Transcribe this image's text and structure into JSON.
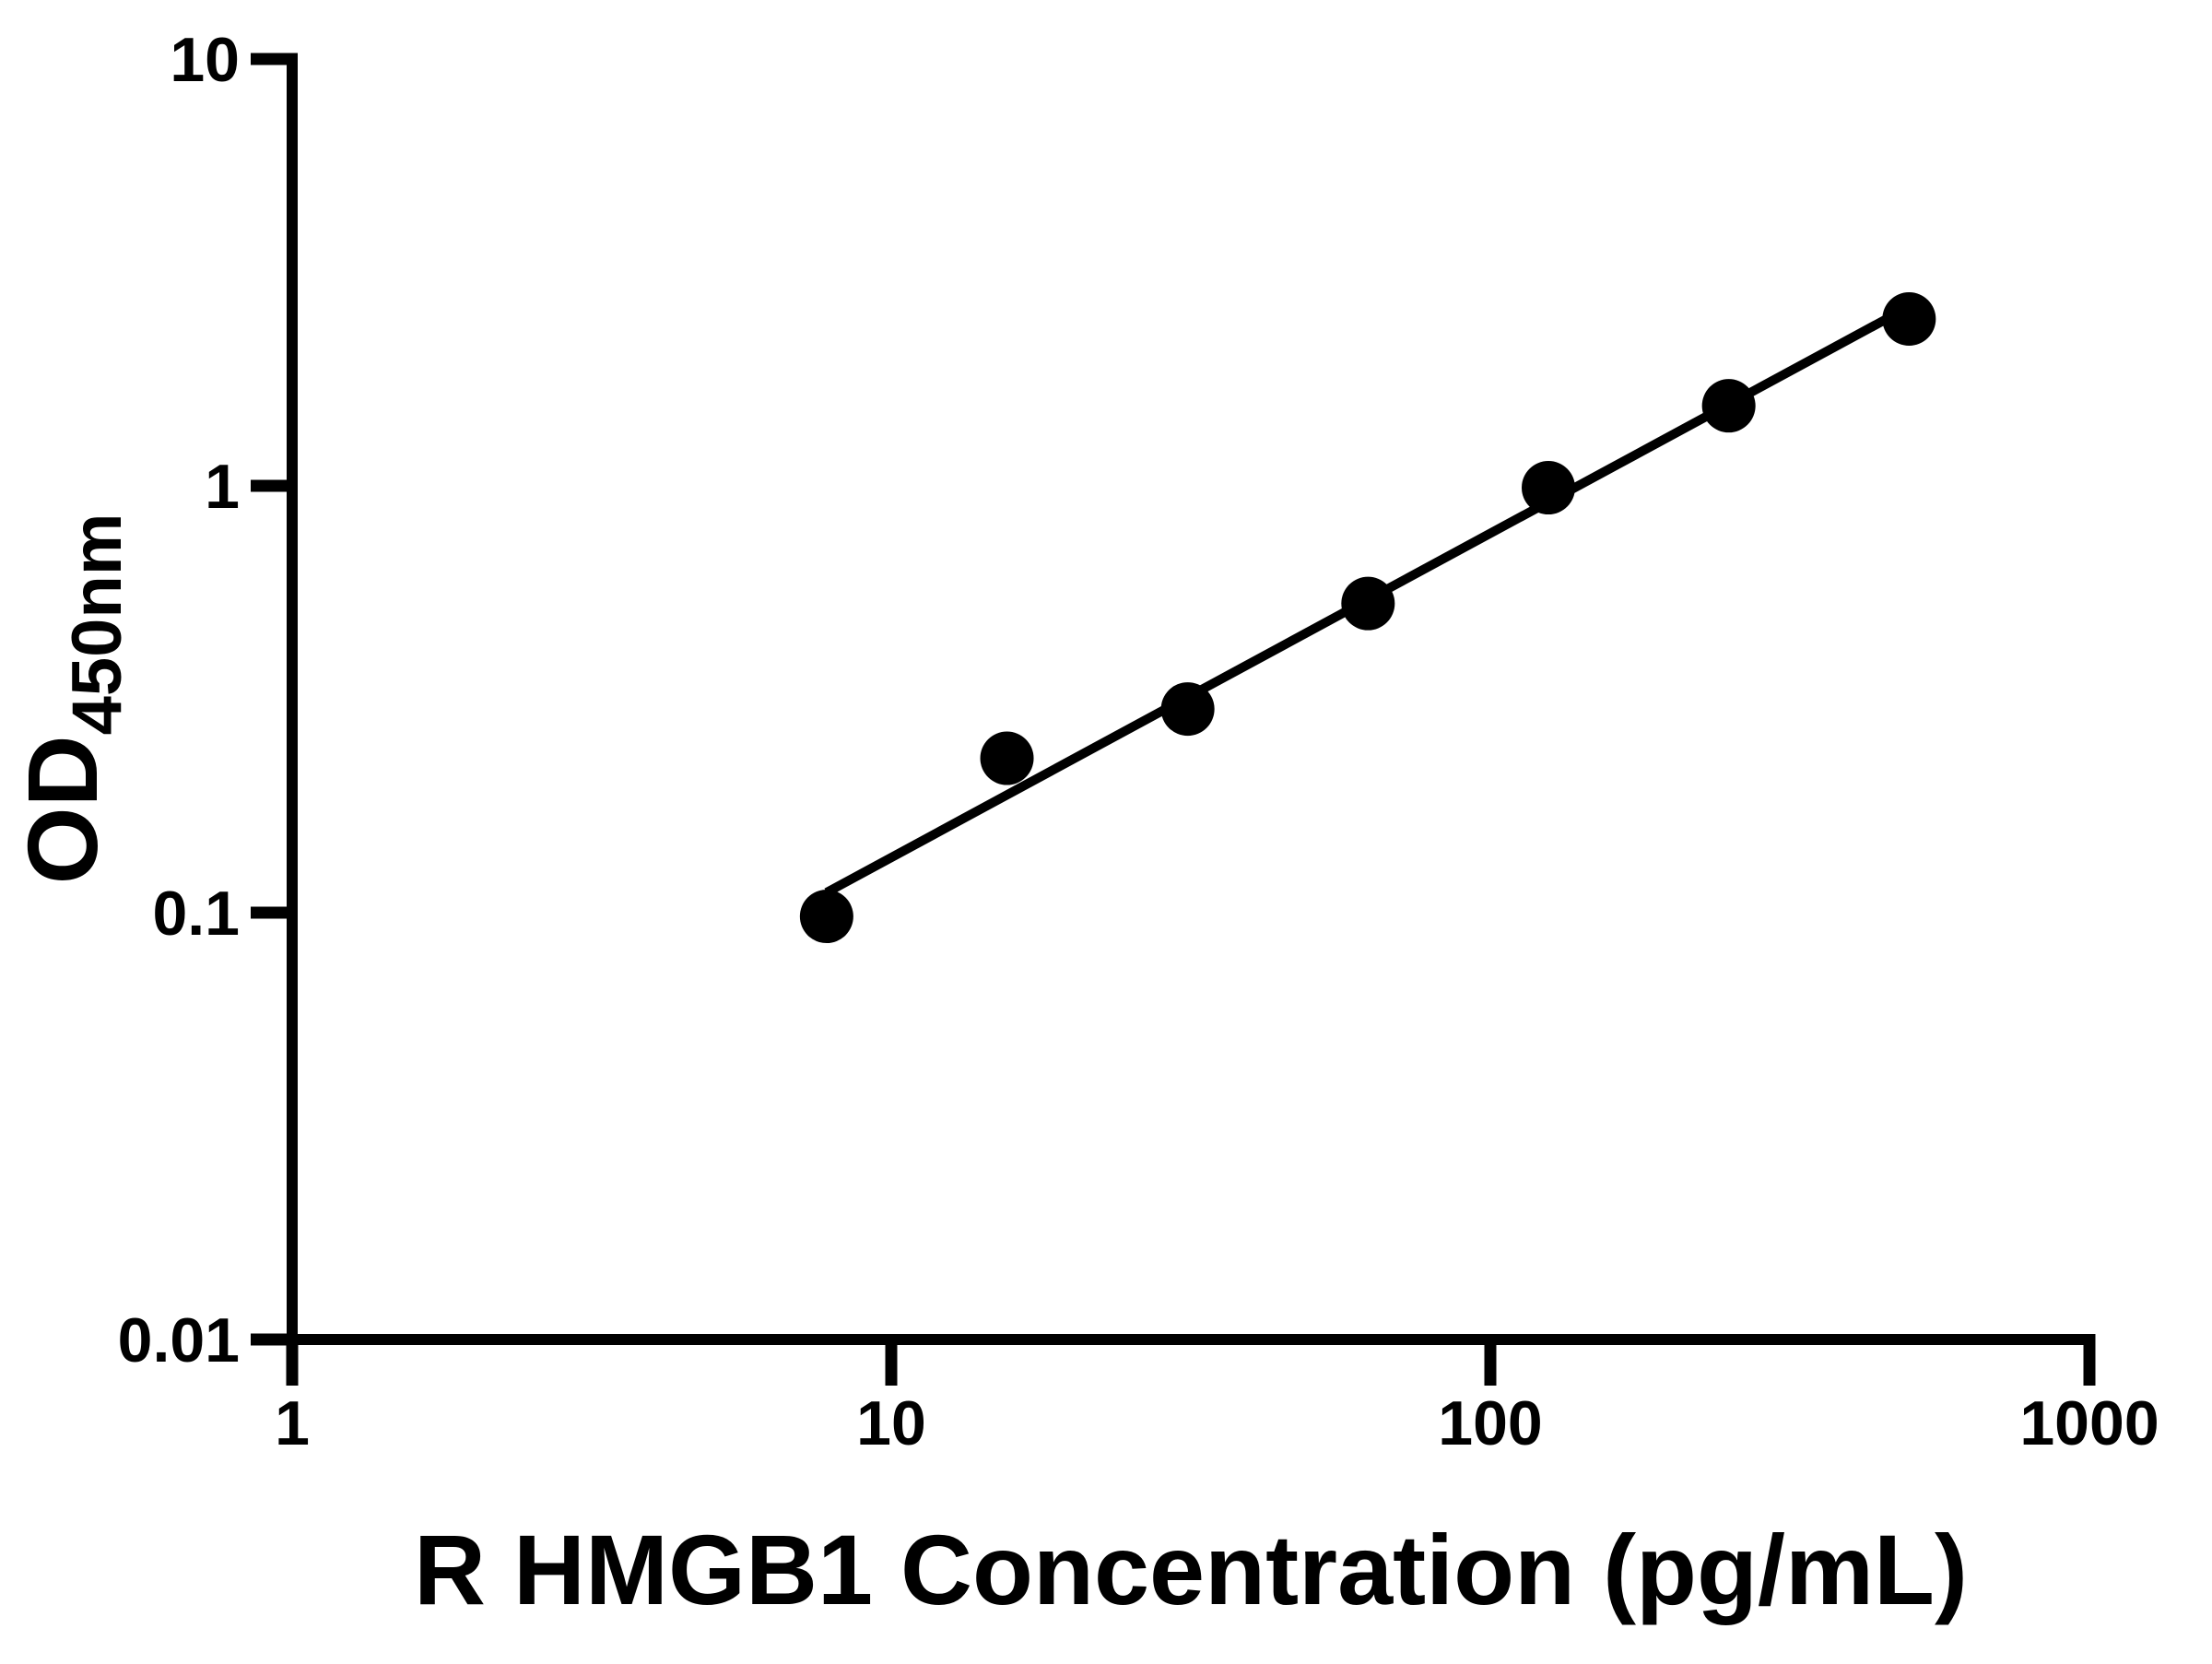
{
  "figure": {
    "background": "#ffffff",
    "ink_color": "#000000"
  },
  "chart_data": {
    "type": "scatter",
    "title": "",
    "xlabel": "R HMGB1 Concentration (pg/mL)",
    "ylabel_main": "OD",
    "ylabel_sub": "450nm",
    "x_scale": "log",
    "y_scale": "log",
    "xlim": [
      1,
      1000
    ],
    "ylim": [
      0.01,
      10
    ],
    "grid": "off",
    "legend": "none",
    "x_ticks": [
      {
        "value": 1,
        "label": "1"
      },
      {
        "value": 10,
        "label": "10"
      },
      {
        "value": 100,
        "label": "100"
      },
      {
        "value": 1000,
        "label": "1000"
      }
    ],
    "y_ticks": [
      {
        "value": 0.01,
        "label": "0.01"
      },
      {
        "value": 0.1,
        "label": "0.1"
      },
      {
        "value": 1,
        "label": "1"
      },
      {
        "value": 10,
        "label": "10"
      }
    ],
    "series": [
      {
        "name": "standard-curve-points",
        "marker": "filled-circle",
        "color": "#000000",
        "points": [
          {
            "x": 7.8,
            "y": 0.098
          },
          {
            "x": 15.6,
            "y": 0.23
          },
          {
            "x": 31.25,
            "y": 0.3
          },
          {
            "x": 62.5,
            "y": 0.53
          },
          {
            "x": 125,
            "y": 0.99
          },
          {
            "x": 250,
            "y": 1.54
          },
          {
            "x": 500,
            "y": 2.46
          }
        ]
      }
    ],
    "trendline": {
      "type": "linear-fit-loglog",
      "slope": 0.7595,
      "intercept": -1.6303,
      "x_start": 7.8,
      "x_end": 500,
      "color": "#000000"
    }
  }
}
